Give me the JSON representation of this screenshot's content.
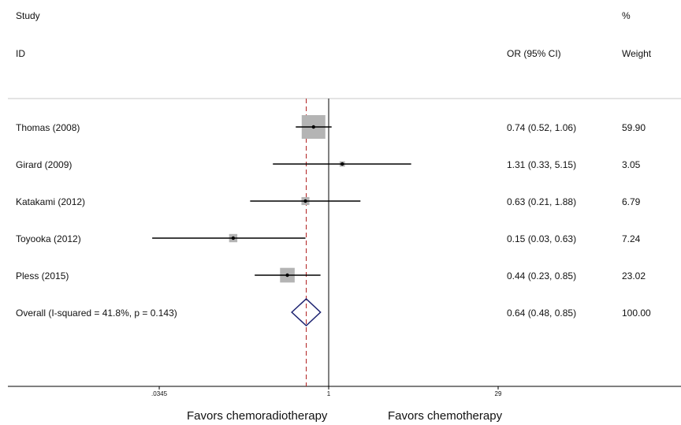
{
  "headers": {
    "study": "Study",
    "id": "ID",
    "or": "OR (95% CI)",
    "pct": "%",
    "weight": "Weight"
  },
  "chart_data": {
    "type": "forest",
    "scale": "log",
    "null_line": 1,
    "overall_line": 0.64,
    "xlim": [
      0.0345,
      29
    ],
    "ticks": [
      ".0345",
      "1",
      "29"
    ],
    "tick_values": [
      0.0345,
      1,
      29
    ],
    "xlabel_left": "Favors chemoradiotherapy",
    "xlabel_right": "Favors chemotherapy",
    "studies": [
      {
        "label": "Thomas (2008)",
        "or": 0.74,
        "lo": 0.52,
        "hi": 1.06,
        "ci_text": "0.74 (0.52, 1.06)",
        "weight": "59.90",
        "w": 59.9
      },
      {
        "label": "Girard (2009)",
        "or": 1.31,
        "lo": 0.33,
        "hi": 5.15,
        "ci_text": "1.31 (0.33, 5.15)",
        "weight": "3.05",
        "w": 3.05
      },
      {
        "label": "Katakami (2012)",
        "or": 0.63,
        "lo": 0.21,
        "hi": 1.88,
        "ci_text": "0.63 (0.21, 1.88)",
        "weight": "6.79",
        "w": 6.79
      },
      {
        "label": "Toyooka (2012)",
        "or": 0.15,
        "lo": 0.03,
        "hi": 0.63,
        "ci_text": "0.15 (0.03, 0.63)",
        "weight": "7.24",
        "w": 7.24
      },
      {
        "label": "Pless (2015)",
        "or": 0.44,
        "lo": 0.23,
        "hi": 0.85,
        "ci_text": "0.44 (0.23, 0.85)",
        "weight": "23.02",
        "w": 23.02
      }
    ],
    "overall": {
      "label": "Overall  (I-squared = 41.8%, p = 0.143)",
      "or": 0.64,
      "lo": 0.48,
      "hi": 0.85,
      "ci_text": "0.64 (0.48, 0.85)",
      "weight": "100.00"
    },
    "colors": {
      "box": "#b4b4b4",
      "diamond": "#1c2270",
      "overall_line": "#b22222",
      "ci": "#000000"
    }
  }
}
